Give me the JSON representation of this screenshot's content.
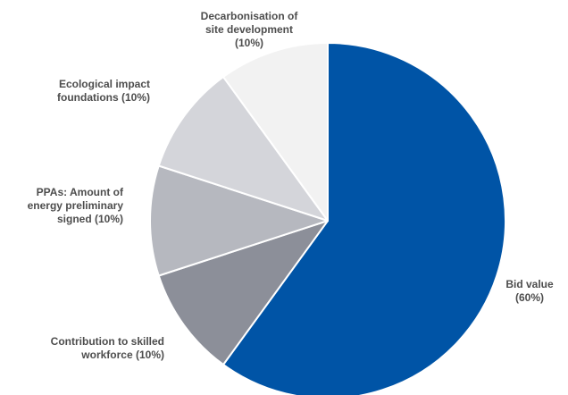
{
  "chart_data": {
    "type": "pie",
    "title": "",
    "slices": [
      {
        "label": [
          "Bid value",
          "(60%)"
        ],
        "value": 60,
        "color": "#0054a6"
      },
      {
        "label": [
          "Contribution to skilled",
          "workforce (10%)"
        ],
        "value": 10,
        "color": "#8c8f99"
      },
      {
        "label": [
          "PPAs: Amount of",
          "energy preliminary",
          "signed (10%)"
        ],
        "value": 10,
        "color": "#b6b8bf"
      },
      {
        "label": [
          "Ecological impact",
          "foundations (10%)"
        ],
        "value": 10,
        "color": "#d4d5da"
      },
      {
        "label": [
          "Decarbonisation of",
          "site development",
          "(10%)"
        ],
        "value": 10,
        "color": "#f2f2f2"
      }
    ]
  }
}
